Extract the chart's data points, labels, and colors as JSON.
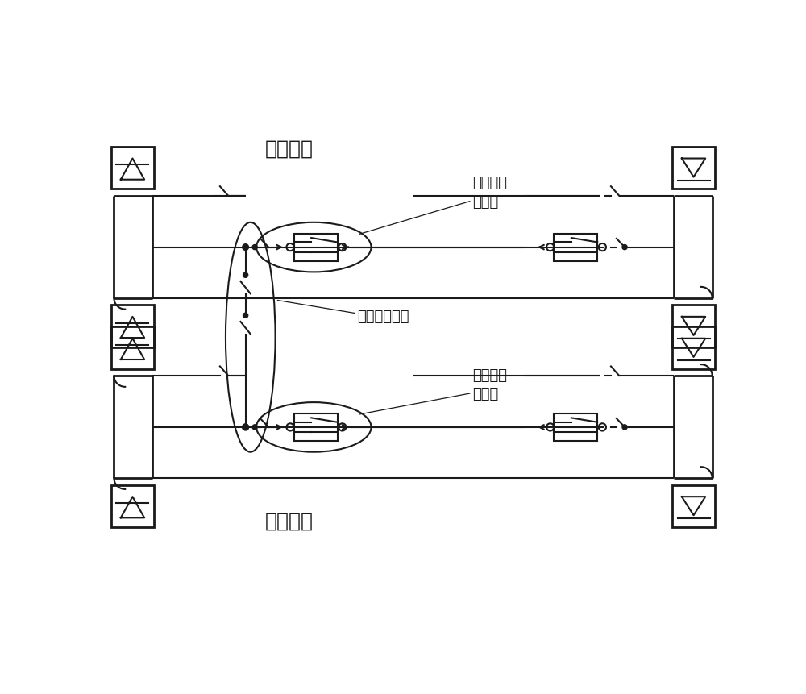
{
  "bg_color": "#ffffff",
  "line_color": "#1a1a1a",
  "text_color": "#1a1a1a",
  "title_top": "回二直流",
  "title_bottom": "回一直流",
  "label_top_ground": "回二直流\n接地极",
  "label_bottom_ground": "回一直流\n接地极",
  "label_connector": "接地极连接线",
  "figsize": [
    10.0,
    8.61
  ],
  "dpi": 100,
  "lw": 1.5,
  "lw2": 2.0
}
